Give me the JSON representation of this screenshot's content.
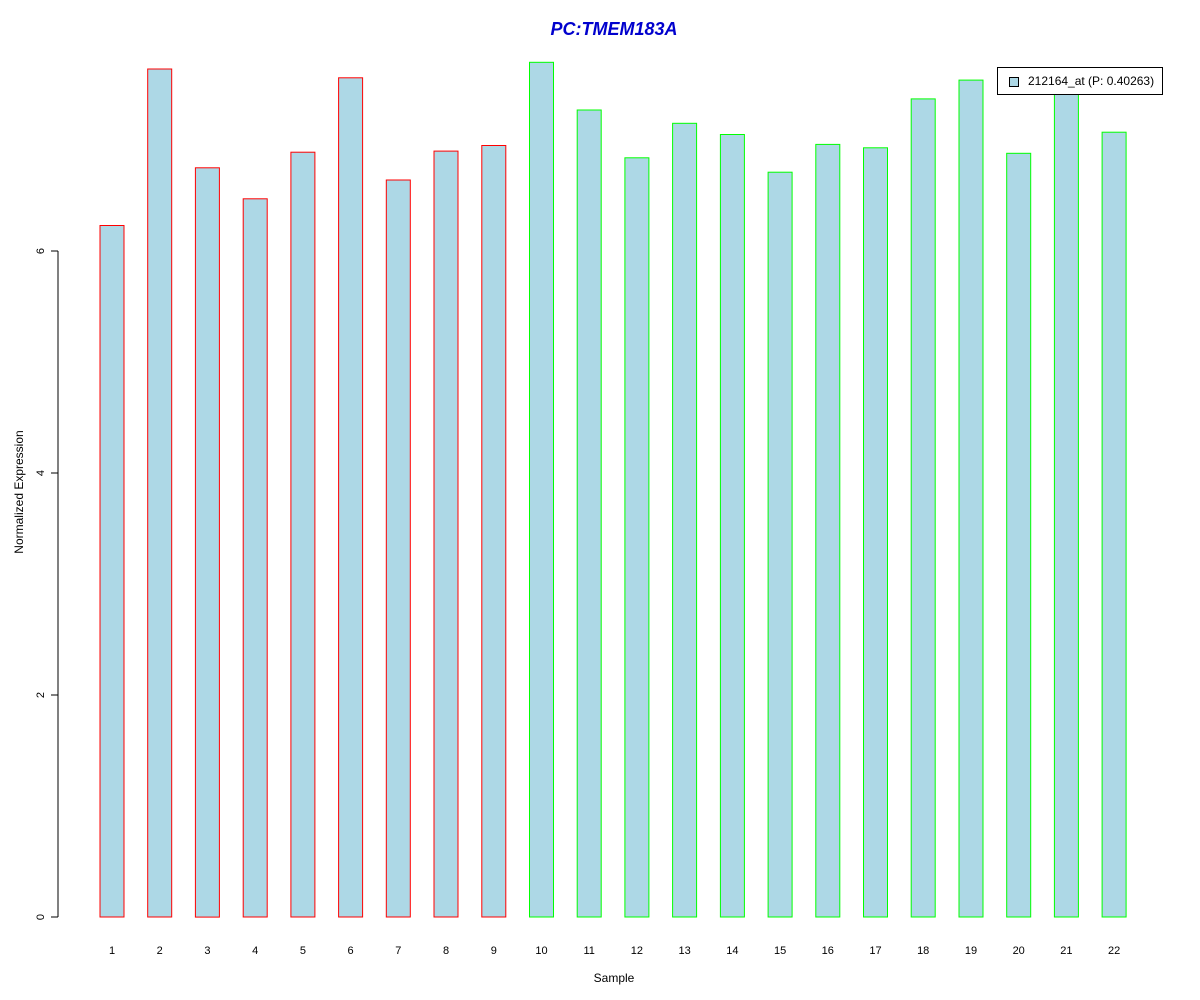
{
  "chart_data": {
    "type": "bar",
    "title": "PC:TMEM183A",
    "xlabel": "Sample",
    "ylabel": "Normalized Expression",
    "categories": [
      "1",
      "2",
      "3",
      "4",
      "5",
      "6",
      "7",
      "8",
      "9",
      "10",
      "11",
      "12",
      "13",
      "14",
      "15",
      "16",
      "17",
      "18",
      "19",
      "20",
      "21",
      "22"
    ],
    "series": [
      {
        "name": "212164_at (P: 0.40263)",
        "values": [
          6.23,
          7.64,
          6.75,
          6.47,
          6.89,
          7.56,
          6.64,
          6.9,
          6.95,
          7.7,
          7.27,
          6.84,
          7.15,
          7.05,
          6.71,
          6.96,
          6.93,
          7.37,
          7.54,
          6.88,
          7.41,
          7.07
        ]
      }
    ],
    "ylim": [
      0,
      7.7
    ],
    "yticks": [
      0,
      2,
      4,
      6
    ],
    "grid": false,
    "legend_position": "top-right",
    "groups": [
      "red",
      "red",
      "red",
      "red",
      "red",
      "red",
      "red",
      "red",
      "red",
      "green",
      "green",
      "green",
      "green",
      "green",
      "green",
      "green",
      "green",
      "green",
      "green",
      "green",
      "green",
      "green"
    ],
    "colors": {
      "fill": "#add8e6",
      "red": "#ff0000",
      "green": "#00ff00",
      "title": "#0000cd",
      "axis": "#000000"
    }
  }
}
